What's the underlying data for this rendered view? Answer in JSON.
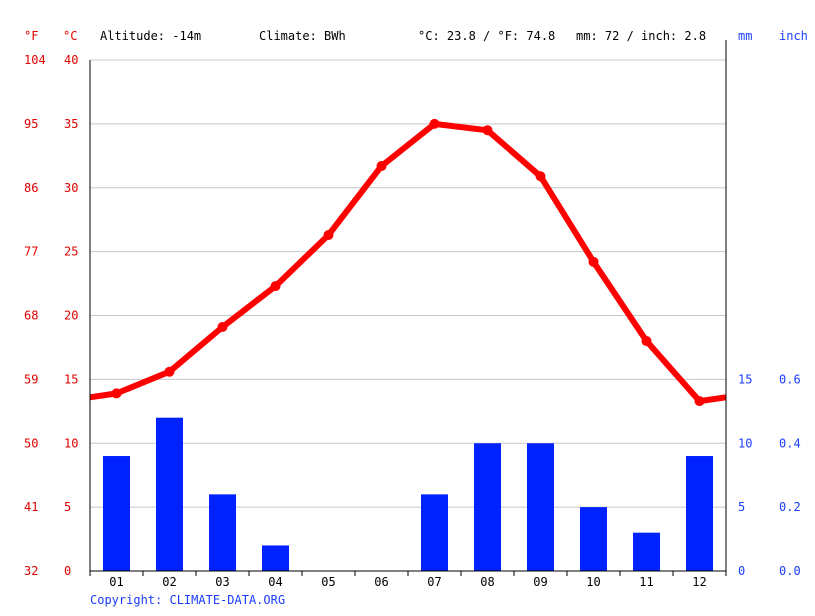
{
  "header": {
    "unit_f": "°F",
    "unit_c": "°C",
    "altitude": "Altitude: -14m",
    "climate": "Climate: BWh",
    "temp_summary": "°C: 23.8 / °F: 74.8",
    "precip_summary": "mm: 72 / inch: 2.8",
    "unit_mm": "mm",
    "unit_inch": "inch"
  },
  "footer": {
    "copyright": "Copyright: CLIMATE-DATA.ORG"
  },
  "colors": {
    "temperature": "#ff0000",
    "precipitation": "#0022ff",
    "left_axis_text": "#e00000",
    "right_axis_text": "#1a3dff",
    "grid": "#c8c8c8"
  },
  "chart_data": {
    "type": "bar",
    "categories": [
      "01",
      "02",
      "03",
      "04",
      "05",
      "06",
      "07",
      "08",
      "09",
      "10",
      "11",
      "12"
    ],
    "series": [
      {
        "type": "line",
        "axis": "left",
        "values": [
          13.9,
          15.6,
          19.1,
          22.3,
          26.3,
          31.7,
          35.0,
          34.5,
          30.9,
          24.2,
          18.0,
          13.3
        ]
      },
      {
        "type": "bar",
        "axis": "right",
        "values": [
          9,
          12,
          6,
          2,
          0,
          0,
          6,
          10,
          10,
          5,
          3,
          9
        ]
      }
    ],
    "left_axis": {
      "celsius_ticks": [
        "0",
        "5",
        "10",
        "15",
        "20",
        "25",
        "30",
        "35",
        "40"
      ],
      "fahrenheit_ticks": [
        "32",
        "41",
        "50",
        "59",
        "68",
        "77",
        "86",
        "95",
        "104"
      ],
      "ylim": [
        0,
        40
      ]
    },
    "right_axis": {
      "mm_ticks": [
        "0",
        "5",
        "10",
        "15"
      ],
      "inch_ticks": [
        "0.0",
        "0.2",
        "0.4",
        "0.6"
      ],
      "ylim": [
        0,
        40
      ]
    },
    "grid": true
  }
}
